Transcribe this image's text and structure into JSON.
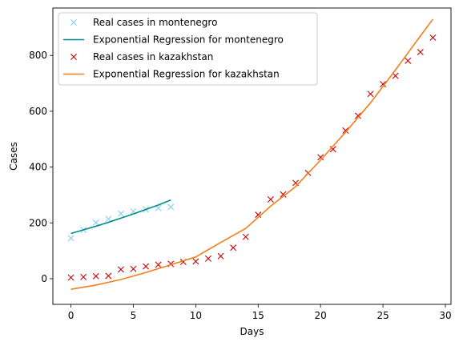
{
  "chart_data": {
    "type": "scatter",
    "xlabel": "Days",
    "ylabel": "Cases",
    "xlim": [
      -1.45,
      30.45
    ],
    "ylim": [
      -92,
      970
    ],
    "xticks": [
      0,
      5,
      10,
      15,
      20,
      25,
      30
    ],
    "yticks": [
      0,
      200,
      400,
      600,
      800
    ],
    "legend_position": "top-left",
    "series": [
      {
        "name": "Real cases in montenegro",
        "kind": "markers",
        "marker": "x",
        "color": "#87ceeb",
        "x": [
          0,
          1,
          2,
          3,
          4,
          5,
          6,
          7,
          8
        ],
        "y": [
          145,
          175,
          201,
          214,
          233,
          241,
          248,
          253,
          257
        ]
      },
      {
        "name": "Exponential Regression for montenegro",
        "kind": "line",
        "color": "#008b8b",
        "x": [
          0,
          1,
          2,
          3,
          4,
          5,
          6,
          7,
          8
        ],
        "y": [
          162,
          175,
          188,
          202,
          217,
          232,
          248,
          264,
          282
        ]
      },
      {
        "name": "Real cases in kazakhstan",
        "kind": "markers",
        "marker": "x",
        "color": "#cc0000",
        "x": [
          0,
          1,
          2,
          3,
          4,
          5,
          6,
          7,
          8,
          9,
          10,
          11,
          12,
          13,
          14,
          15,
          16,
          17,
          18,
          19,
          20,
          21,
          22,
          23,
          24,
          25,
          26,
          27,
          28,
          29
        ],
        "y": [
          4,
          6,
          9,
          10,
          33,
          35,
          44,
          50,
          53,
          60,
          62,
          72,
          81,
          111,
          150,
          229,
          284,
          302,
          343,
          379,
          435,
          464,
          531,
          584,
          662,
          697,
          727,
          781,
          812,
          864
        ]
      },
      {
        "name": "Exponential Regression for kazakhstan",
        "kind": "line",
        "color": "#f47f1a",
        "x": [
          0,
          2,
          4,
          6,
          8,
          10,
          12,
          14,
          16,
          18,
          20,
          22,
          24,
          26,
          28,
          29
        ],
        "y": [
          -38,
          -23,
          -3,
          22,
          50,
          78,
          130,
          180,
          260,
          330,
          425,
          525,
          630,
          748,
          870,
          930
        ]
      }
    ]
  }
}
